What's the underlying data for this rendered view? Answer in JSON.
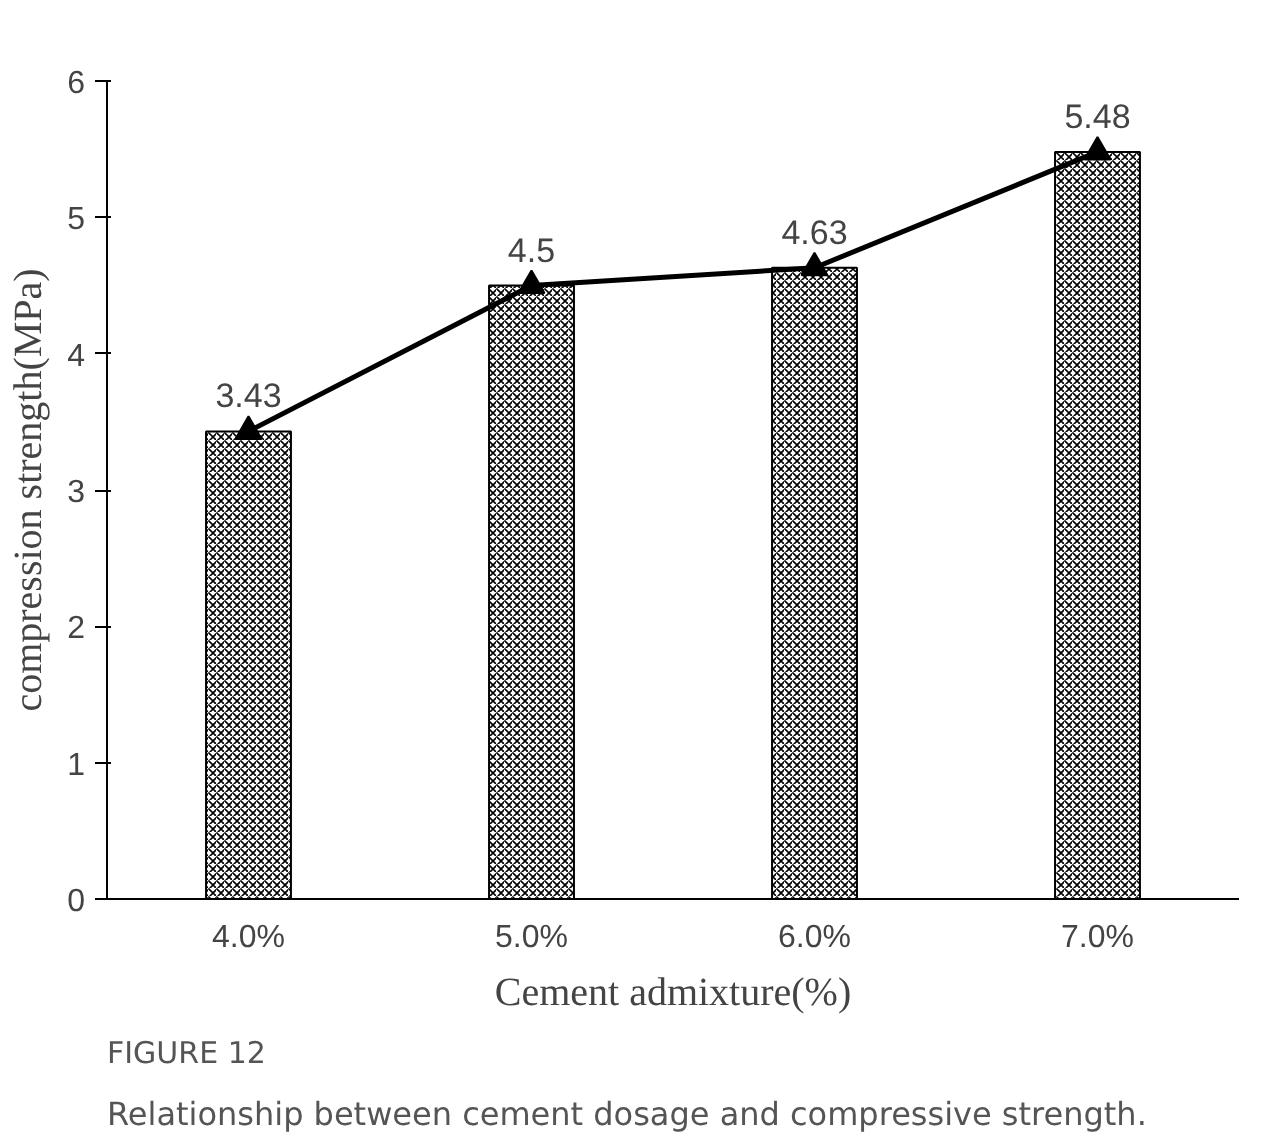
{
  "chart_data": {
    "type": "bar",
    "xlabel": "Cement admixture(%)",
    "ylabel": "compression strength(MPa)",
    "categories": [
      "4.0%",
      "5.0%",
      "6.0%",
      "7.0%"
    ],
    "series": [
      {
        "color": "#000000",
        "values": [
          3.43,
          4.5,
          4.63,
          5.48
        ]
      },
      {
        "type": "line",
        "color": "#000000",
        "values": [
          3.43,
          4.5,
          4.63,
          5.48
        ],
        "value_labels": [
          "3.43",
          "4.5",
          "4.63",
          "5.48"
        ]
      }
    ],
    "marker": "triangle",
    "grid": false,
    "ylim": [
      0,
      6
    ],
    "yticks": [
      0,
      1,
      2,
      3,
      4,
      5,
      6
    ],
    "annotations": [
      "FIGURE 12",
      "Relationship between cement dosage and compressive strength."
    ]
  }
}
